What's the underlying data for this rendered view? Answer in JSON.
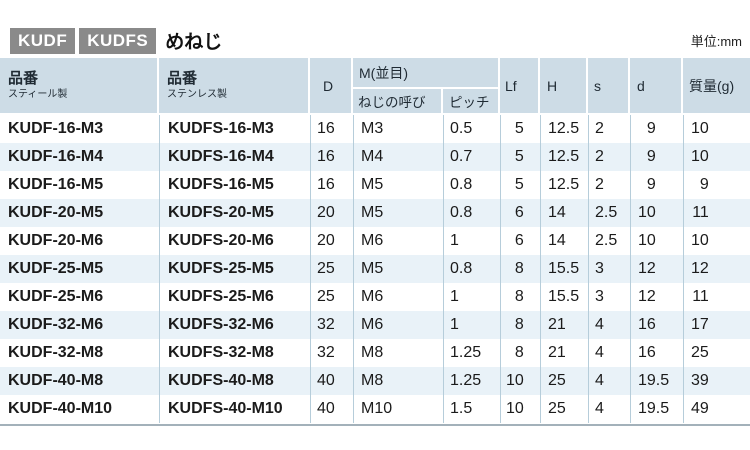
{
  "title": {
    "badges": [
      "KUDF",
      "KUDFS"
    ],
    "label": "めねじ",
    "unit": "単位:mm"
  },
  "table": {
    "headers": {
      "part_steel": {
        "title": "品番",
        "sub": "スティール製"
      },
      "part_stainless": {
        "title": "品番",
        "sub": "ステンレス製"
      },
      "outer_diameter": "D",
      "thread_group": "M(並目)",
      "thread_callout": "ねじの呼び",
      "pitch": "ピッチ",
      "lf": "Lf",
      "h": "H",
      "s": "s",
      "d": "d",
      "mass": "質量(g)"
    },
    "rows": [
      [
        "KUDF-16-M3",
        "KUDFS-16-M3",
        "16",
        "M3",
        "0.5",
        "5",
        "12.5",
        "2",
        "9",
        "10"
      ],
      [
        "KUDF-16-M4",
        "KUDFS-16-M4",
        "16",
        "M4",
        "0.7",
        "5",
        "12.5",
        "2",
        "9",
        "10"
      ],
      [
        "KUDF-16-M5",
        "KUDFS-16-M5",
        "16",
        "M5",
        "0.8",
        "5",
        "12.5",
        "2",
        "9",
        "9"
      ],
      [
        "KUDF-20-M5",
        "KUDFS-20-M5",
        "20",
        "M5",
        "0.8",
        "6",
        "14",
        "2.5",
        "10",
        "11"
      ],
      [
        "KUDF-20-M6",
        "KUDFS-20-M6",
        "20",
        "M6",
        "1",
        "6",
        "14",
        "2.5",
        "10",
        "10"
      ],
      [
        "KUDF-25-M5",
        "KUDFS-25-M5",
        "25",
        "M5",
        "0.8",
        "8",
        "15.5",
        "3",
        "12",
        "12"
      ],
      [
        "KUDF-25-M6",
        "KUDFS-25-M6",
        "25",
        "M6",
        "1",
        "8",
        "15.5",
        "3",
        "12",
        "11"
      ],
      [
        "KUDF-32-M6",
        "KUDFS-32-M6",
        "32",
        "M6",
        "1",
        "8",
        "21",
        "4",
        "16",
        "17"
      ],
      [
        "KUDF-32-M8",
        "KUDFS-32-M8",
        "32",
        "M8",
        "1.25",
        "8",
        "21",
        "4",
        "16",
        "25"
      ],
      [
        "KUDF-40-M8",
        "KUDFS-40-M8",
        "40",
        "M8",
        "1.25",
        "10",
        "25",
        "4",
        "19.5",
        "39"
      ],
      [
        "KUDF-40-M10",
        "KUDFS-40-M10",
        "40",
        "M10",
        "1.5",
        "10",
        "25",
        "4",
        "19.5",
        "49"
      ]
    ]
  },
  "colors": {
    "header_bg": "#cddce6",
    "alt_row_bg": "#e9f2f8",
    "divider": "#b6cdda",
    "badge_bg": "#8a8a8a",
    "table_bottom_border": "#a3b1ba"
  }
}
